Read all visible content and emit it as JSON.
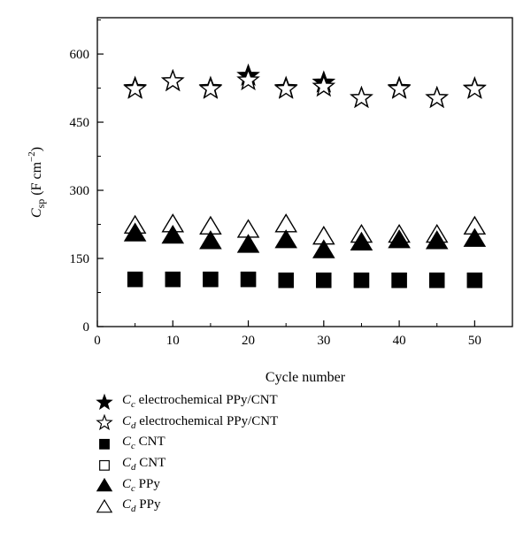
{
  "chart_data": {
    "type": "scatter",
    "xlabel": "Cycle number",
    "ylabel": {
      "symbol": "C",
      "subscript": "sp",
      "units": "(F cm",
      "exponent": "−2",
      "close": ")"
    },
    "xlim": [
      0,
      55
    ],
    "ylim": [
      0,
      680
    ],
    "xticks": [
      0,
      10,
      20,
      30,
      40,
      50
    ],
    "yticks": [
      0,
      150,
      300,
      450,
      600
    ],
    "grid": false,
    "legend_position": "bottom-left outside",
    "series": [
      {
        "name": "electrochemical PPy/CNT",
        "prefix": "C",
        "sub": "c",
        "marker": "star",
        "filled": true,
        "x": [
          5,
          10,
          15,
          20,
          25,
          30,
          35,
          40,
          45,
          50
        ],
        "y": [
          525,
          540,
          525,
          552,
          525,
          537,
          503,
          525,
          503,
          524
        ]
      },
      {
        "name": "electrochemical PPy/CNT",
        "prefix": "C",
        "sub": "d",
        "marker": "star",
        "filled": false,
        "x": [
          5,
          10,
          15,
          20,
          25,
          30,
          35,
          40,
          45,
          50
        ],
        "y": [
          523,
          540,
          523,
          542,
          523,
          528,
          503,
          523,
          503,
          523
        ]
      },
      {
        "name": "CNT",
        "prefix": "C",
        "sub": "c",
        "marker": "square",
        "filled": true,
        "x": [
          5,
          10,
          15,
          20,
          25,
          30,
          35,
          40,
          45,
          50
        ],
        "y": [
          104,
          104,
          104,
          104,
          102,
          102,
          102,
          102,
          102,
          102
        ]
      },
      {
        "name": "CNT",
        "prefix": "C",
        "sub": "d",
        "marker": "square",
        "filled": false,
        "x": [
          5,
          10,
          15,
          20,
          25,
          30,
          35,
          40,
          45,
          50
        ],
        "y": [
          104,
          104,
          104,
          104,
          102,
          102,
          102,
          102,
          102,
          102
        ]
      },
      {
        "name": "PPy",
        "prefix": "C",
        "sub": "c",
        "marker": "triangle",
        "filled": true,
        "x": [
          5,
          10,
          15,
          20,
          25,
          30,
          35,
          40,
          45,
          50
        ],
        "y": [
          205,
          200,
          188,
          180,
          190,
          168,
          185,
          190,
          188,
          193
        ]
      },
      {
        "name": "PPy",
        "prefix": "C",
        "sub": "d",
        "marker": "triangle",
        "filled": false,
        "x": [
          5,
          10,
          15,
          20,
          25,
          30,
          35,
          40,
          45,
          50
        ],
        "y": [
          222,
          225,
          220,
          213,
          225,
          198,
          202,
          202,
          202,
          220
        ]
      }
    ]
  }
}
